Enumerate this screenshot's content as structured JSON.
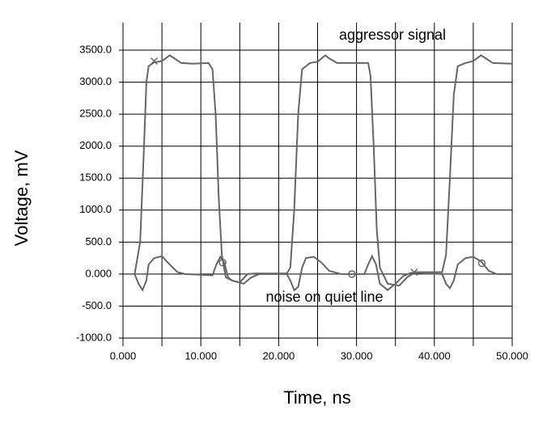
{
  "chart_data": {
    "type": "line",
    "xlabel": "Time, ns",
    "ylabel": "Voltage, mV",
    "annotations": [
      "aggressor signal",
      "noise on quiet line"
    ],
    "xlim": [
      0,
      50
    ],
    "ylim": [
      -1000,
      3900
    ],
    "xticks": [
      {
        "value": 0,
        "label": "0.000"
      },
      {
        "value": 10,
        "label": "10.000"
      },
      {
        "value": 20,
        "label": "20.000"
      },
      {
        "value": 30,
        "label": "30.000"
      },
      {
        "value": 40,
        "label": "40.000"
      },
      {
        "value": 50,
        "label": "50.000"
      }
    ],
    "xgrid_minor": [
      5,
      15,
      25,
      35,
      45
    ],
    "yticks": [
      {
        "value": -1000,
        "label": "-1000.0"
      },
      {
        "value": -500,
        "label": "-500.0"
      },
      {
        "value": 0,
        "label": "0.000"
      },
      {
        "value": 500,
        "label": "500.0"
      },
      {
        "value": 1000,
        "label": "1000.0"
      },
      {
        "value": 1500,
        "label": "1500.0"
      },
      {
        "value": 2000,
        "label": "2000.0"
      },
      {
        "value": 2500,
        "label": "2500.0"
      },
      {
        "value": 3000,
        "label": "3000.0"
      },
      {
        "value": 3500,
        "label": "3500.0"
      }
    ],
    "grid": true,
    "series": [
      {
        "name": "aggressor signal",
        "color": "#666666",
        "marker_shape": "x",
        "x": [
          1.5,
          2.2,
          2.7,
          3.0,
          3.3,
          4,
          5,
          6,
          6.5,
          7.5,
          9,
          11,
          11.5,
          11.9,
          12.3,
          12.7,
          13.2,
          14,
          15.5,
          16.5,
          17.5,
          21,
          21.5,
          22,
          22.5,
          23,
          24,
          25,
          26,
          26.5,
          27.5,
          31.5,
          31.8,
          32.2,
          32.6,
          33,
          34,
          35.5,
          36.5,
          37.5,
          41,
          41.5,
          42,
          42.5,
          43,
          44,
          45,
          46,
          46.5,
          47.5,
          50
        ],
        "values": [
          0,
          500,
          2000,
          3000,
          3250,
          3310,
          3330,
          3420,
          3380,
          3300,
          3290,
          3300,
          3200,
          2500,
          1200,
          300,
          -50,
          -100,
          -150,
          -50,
          0,
          0,
          100,
          1000,
          2500,
          3200,
          3300,
          3320,
          3420,
          3370,
          3300,
          3300,
          3100,
          2000,
          700,
          100,
          -150,
          -180,
          -50,
          30,
          30,
          300,
          1500,
          2800,
          3250,
          3300,
          3330,
          3420,
          3380,
          3300,
          3290
        ],
        "marker_x": [
          4,
          37.4
        ],
        "marker_y": [
          3330,
          30
        ]
      },
      {
        "name": "noise on quiet line",
        "color": "#666666",
        "marker_shape": "o",
        "x": [
          1.5,
          2,
          2.5,
          3,
          3.3,
          4,
          5,
          6,
          7,
          8,
          10,
          11.5,
          12,
          12.5,
          13,
          13.5,
          14,
          15,
          16,
          17,
          21,
          21.5,
          22,
          22.5,
          23,
          23.5,
          24.5,
          25.5,
          26.5,
          28,
          31,
          31.5,
          32,
          32.5,
          33,
          34,
          35,
          36,
          37,
          41,
          41.5,
          42,
          42.5,
          43,
          44,
          45,
          46,
          47,
          48,
          50
        ],
        "values": [
          0,
          -150,
          -250,
          -100,
          150,
          250,
          280,
          150,
          30,
          0,
          -10,
          -20,
          150,
          270,
          180,
          -50,
          -100,
          -130,
          0,
          10,
          10,
          -100,
          -250,
          -200,
          100,
          250,
          270,
          180,
          50,
          0,
          0,
          150,
          280,
          150,
          -150,
          -250,
          -150,
          -30,
          20,
          0,
          -150,
          -220,
          -100,
          150,
          250,
          270,
          200,
          50,
          0,
          0
        ],
        "marker_x": [
          12.8,
          29.4,
          46.1
        ],
        "marker_y": [
          180,
          0,
          170
        ]
      }
    ]
  }
}
